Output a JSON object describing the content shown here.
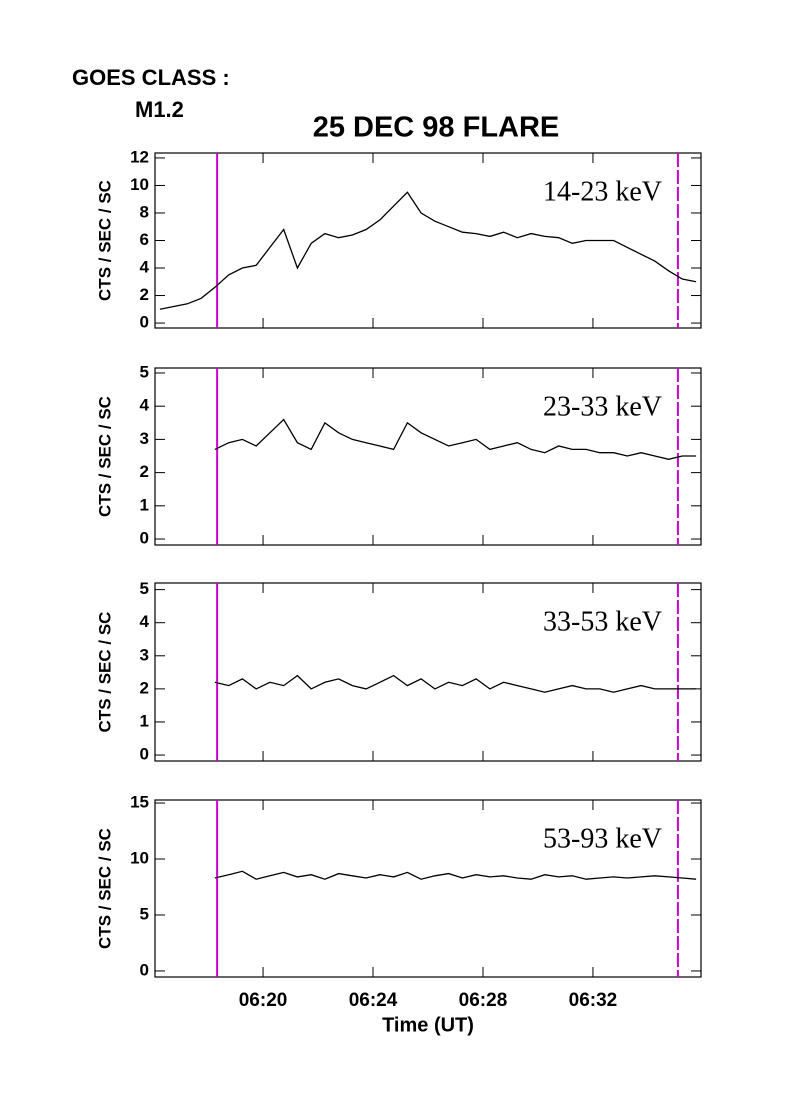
{
  "goes_label": "GOES CLASS :",
  "goes_class": "M1.2",
  "title": "25 DEC 98 FLARE",
  "chart_data": [
    {
      "type": "line",
      "annotation": "14-23 keV",
      "ylabel": "CTS / SEC / SC",
      "color": "#000000",
      "x": [
        16.25,
        16.75,
        17.25,
        17.75,
        18.25,
        18.75,
        19.25,
        19.75,
        20.25,
        20.75,
        21.25,
        21.75,
        22.25,
        22.75,
        23.25,
        23.75,
        24.25,
        24.75,
        25.25,
        25.75,
        26.25,
        26.75,
        27.25,
        27.75,
        28.25,
        28.75,
        29.25,
        29.75,
        30.25,
        30.75,
        31.25,
        31.75,
        32.25,
        32.75,
        33.25,
        33.75,
        34.25,
        34.75,
        35.25,
        35.75
      ],
      "values": [
        1.0,
        1.2,
        1.4,
        1.8,
        2.6,
        3.5,
        4.0,
        4.2,
        5.5,
        6.8,
        4.0,
        5.8,
        6.5,
        6.2,
        6.4,
        6.8,
        7.5,
        8.5,
        9.5,
        8.0,
        7.4,
        7.0,
        6.6,
        6.5,
        6.3,
        6.6,
        6.2,
        6.5,
        6.3,
        6.2,
        5.8,
        6.0,
        6.0,
        6.0,
        5.5,
        5.0,
        4.5,
        3.8,
        3.2,
        3.0
      ],
      "xlim": [
        16.07,
        35.93
      ],
      "ylim": [
        -0.36,
        12.36
      ],
      "yticks": [
        0,
        2,
        4,
        6,
        8,
        10,
        12
      ],
      "xticks": [
        {
          "value": 20,
          "label": "06:20"
        },
        {
          "value": 24,
          "label": "06:24"
        },
        {
          "value": 28,
          "label": "06:28"
        },
        {
          "value": 32,
          "label": "06:32"
        }
      ],
      "show_xtick_labels": false,
      "vlines": [
        18.33,
        35.09
      ],
      "vline_color": "#cc00cc"
    },
    {
      "type": "line",
      "annotation": "23-33 keV",
      "ylabel": "CTS / SEC / SC",
      "color": "#000000",
      "x": [
        16.25,
        16.75,
        17.25,
        17.75,
        18.25,
        18.75,
        19.25,
        19.75,
        20.25,
        20.75,
        21.25,
        21.75,
        22.25,
        22.75,
        23.25,
        23.75,
        24.25,
        24.75,
        25.25,
        25.75,
        26.25,
        26.75,
        27.25,
        27.75,
        28.25,
        28.75,
        29.25,
        29.75,
        30.25,
        30.75,
        31.25,
        31.75,
        32.25,
        32.75,
        33.25,
        33.75,
        34.25,
        34.75,
        35.25,
        35.75
      ],
      "values": [
        null,
        null,
        null,
        null,
        2.7,
        2.9,
        3.0,
        2.8,
        3.2,
        3.6,
        2.9,
        2.7,
        3.5,
        3.2,
        3.0,
        2.9,
        2.8,
        2.7,
        3.5,
        3.2,
        3.0,
        2.8,
        2.9,
        3.0,
        2.7,
        2.8,
        2.9,
        2.7,
        2.6,
        2.8,
        2.7,
        2.7,
        2.6,
        2.6,
        2.5,
        2.6,
        2.5,
        2.4,
        2.5,
        2.5
      ],
      "xlim": [
        16.07,
        35.93
      ],
      "ylim": [
        -0.18,
        5.15
      ],
      "yticks": [
        0,
        1,
        2,
        3,
        4,
        5
      ],
      "xticks": [
        {
          "value": 20,
          "label": "06:20"
        },
        {
          "value": 24,
          "label": "06:24"
        },
        {
          "value": 28,
          "label": "06:28"
        },
        {
          "value": 32,
          "label": "06:32"
        }
      ],
      "show_xtick_labels": false,
      "vlines": [
        18.33,
        35.09
      ],
      "vline_color": "#cc00cc"
    },
    {
      "type": "line",
      "annotation": "33-53 keV",
      "ylabel": "CTS / SEC / SC",
      "color": "#000000",
      "x": [
        16.25,
        16.75,
        17.25,
        17.75,
        18.25,
        18.75,
        19.25,
        19.75,
        20.25,
        20.75,
        21.25,
        21.75,
        22.25,
        22.75,
        23.25,
        23.75,
        24.25,
        24.75,
        25.25,
        25.75,
        26.25,
        26.75,
        27.25,
        27.75,
        28.25,
        28.75,
        29.25,
        29.75,
        30.25,
        30.75,
        31.25,
        31.75,
        32.25,
        32.75,
        33.25,
        33.75,
        34.25,
        34.75,
        35.25,
        35.75
      ],
      "values": [
        null,
        null,
        null,
        null,
        2.2,
        2.1,
        2.3,
        2.0,
        2.2,
        2.1,
        2.4,
        2.0,
        2.2,
        2.3,
        2.1,
        2.0,
        2.2,
        2.4,
        2.1,
        2.3,
        2.0,
        2.2,
        2.1,
        2.3,
        2.0,
        2.2,
        2.1,
        2.0,
        1.9,
        2.0,
        2.1,
        2.0,
        2.0,
        1.9,
        2.0,
        2.1,
        2.0,
        2.0,
        2.0,
        2.0
      ],
      "xlim": [
        16.07,
        35.93
      ],
      "ylim": [
        -0.18,
        5.2
      ],
      "yticks": [
        0,
        1,
        2,
        3,
        4,
        5
      ],
      "xticks": [
        {
          "value": 20,
          "label": "06:20"
        },
        {
          "value": 24,
          "label": "06:24"
        },
        {
          "value": 28,
          "label": "06:28"
        },
        {
          "value": 32,
          "label": "06:32"
        }
      ],
      "show_xtick_labels": false,
      "vlines": [
        18.33,
        35.09
      ],
      "vline_color": "#cc00cc"
    },
    {
      "type": "line",
      "annotation": "53-93 keV",
      "ylabel": "CTS / SEC / SC",
      "xlabel": "Time (UT)",
      "color": "#000000",
      "x": [
        16.25,
        16.75,
        17.25,
        17.75,
        18.25,
        18.75,
        19.25,
        19.75,
        20.25,
        20.75,
        21.25,
        21.75,
        22.25,
        22.75,
        23.25,
        23.75,
        24.25,
        24.75,
        25.25,
        25.75,
        26.25,
        26.75,
        27.25,
        27.75,
        28.25,
        28.75,
        29.25,
        29.75,
        30.25,
        30.75,
        31.25,
        31.75,
        32.25,
        32.75,
        33.25,
        33.75,
        34.25,
        34.75,
        35.25,
        35.75
      ],
      "values": [
        null,
        null,
        null,
        null,
        8.3,
        8.6,
        8.9,
        8.2,
        8.5,
        8.8,
        8.4,
        8.6,
        8.2,
        8.7,
        8.5,
        8.3,
        8.6,
        8.4,
        8.8,
        8.2,
        8.5,
        8.7,
        8.3,
        8.6,
        8.4,
        8.5,
        8.3,
        8.2,
        8.6,
        8.4,
        8.5,
        8.2,
        8.3,
        8.4,
        8.3,
        8.4,
        8.5,
        8.4,
        8.3,
        8.2
      ],
      "xlim": [
        16.07,
        35.93
      ],
      "ylim": [
        -0.54,
        15.27
      ],
      "yticks": [
        0,
        5,
        10,
        15
      ],
      "xticks": [
        {
          "value": 20,
          "label": "06:20"
        },
        {
          "value": 24,
          "label": "06:24"
        },
        {
          "value": 28,
          "label": "06:28"
        },
        {
          "value": 32,
          "label": "06:32"
        }
      ],
      "show_xtick_labels": true,
      "vlines": [
        18.33,
        35.09
      ],
      "vline_color": "#cc00cc"
    }
  ]
}
